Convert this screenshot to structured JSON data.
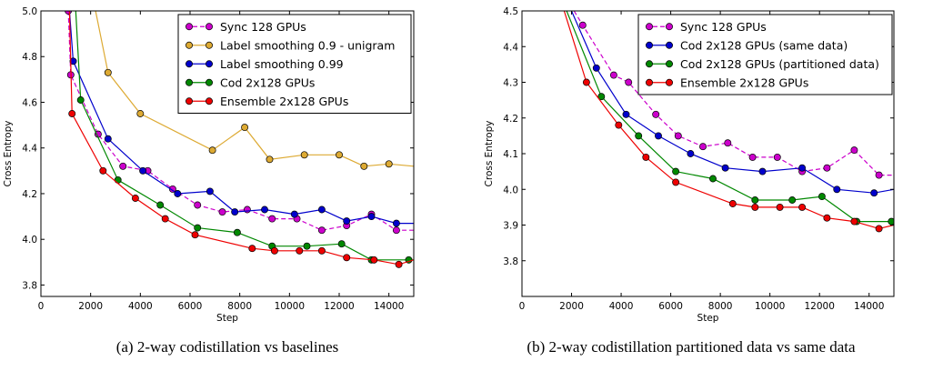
{
  "chart_data": [
    {
      "type": "line",
      "caption": "(a) 2-way codistillation vs baselines",
      "xlabel": "Step",
      "ylabel": "Cross Entropy",
      "xlim": [
        0,
        15000
      ],
      "ylim": [
        3.75,
        5.0
      ],
      "xticks": [
        0,
        2000,
        4000,
        6000,
        8000,
        10000,
        12000,
        14000
      ],
      "xtick_labels": [
        "0",
        "2000",
        "4000",
        "6000",
        "8000",
        "10000",
        "12000",
        "14000"
      ],
      "yticks": [
        3.8,
        4.0,
        4.2,
        4.4,
        4.6,
        4.8,
        5.0
      ],
      "ytick_labels": [
        "3.8",
        "4.0",
        "4.2",
        "4.4",
        "4.6",
        "4.8",
        "5.0"
      ],
      "grid": false,
      "legend": "top-right",
      "series": [
        {
          "name": "Sync 128 GPUs",
          "color": "#cc00cc",
          "dashed": true,
          "x": [
            1100,
            1200,
            2300,
            3300,
            4300,
            5300,
            6300,
            7300,
            8300,
            9300,
            10300,
            11300,
            12300,
            13300,
            14300,
            15000
          ],
          "y": [
            5.0,
            4.72,
            4.46,
            4.32,
            4.3,
            4.22,
            4.15,
            4.12,
            4.13,
            4.09,
            4.09,
            4.04,
            4.06,
            4.11,
            4.04,
            4.04
          ]
        },
        {
          "name": "Label smoothing 0.9 - unigram",
          "color": "#ddaa33",
          "dashed": false,
          "x": [
            2200,
            2700,
            4000,
            6900,
            8200,
            9200,
            10600,
            12000,
            13000,
            14000,
            15000
          ],
          "y": [
            5.0,
            4.73,
            4.55,
            4.39,
            4.49,
            4.35,
            4.37,
            4.37,
            4.32,
            4.33,
            4.32
          ],
          "markers_from": 1
        },
        {
          "name": "Label smoothing 0.99",
          "color": "#0000cc",
          "dashed": false,
          "x": [
            1150,
            1300,
            2700,
            4100,
            5500,
            6800,
            7800,
            9000,
            10200,
            11300,
            12300,
            13300,
            14300,
            15000
          ],
          "y": [
            5.0,
            4.78,
            4.44,
            4.3,
            4.2,
            4.21,
            4.12,
            4.13,
            4.11,
            4.13,
            4.08,
            4.1,
            4.07,
            4.07
          ],
          "markers_from": 1
        },
        {
          "name": "Cod 2x128 GPUs",
          "color": "#008800",
          "dashed": false,
          "x": [
            1400,
            1600,
            3100,
            4800,
            6300,
            7900,
            9300,
            10700,
            12100,
            13300,
            14800,
            15000
          ],
          "y": [
            5.0,
            4.61,
            4.26,
            4.15,
            4.05,
            4.03,
            3.97,
            3.97,
            3.98,
            3.91,
            3.91,
            3.91
          ],
          "markers_from": 1
        },
        {
          "name": "Ensemble 2x128 GPUs",
          "color": "#ee0000",
          "dashed": false,
          "x": [
            1150,
            1250,
            2500,
            3800,
            5000,
            6200,
            8500,
            9400,
            10400,
            11300,
            12300,
            13400,
            14400,
            15000
          ],
          "y": [
            5.0,
            4.55,
            4.3,
            4.18,
            4.09,
            4.02,
            3.96,
            3.95,
            3.95,
            3.95,
            3.92,
            3.91,
            3.89,
            3.91
          ],
          "markers_from": 1
        }
      ]
    },
    {
      "type": "line",
      "caption": "(b) 2-way codistillation partitioned data vs same data",
      "xlabel": "Step",
      "ylabel": "Cross Entropy",
      "xlim": [
        0,
        15000
      ],
      "ylim": [
        3.7,
        4.5
      ],
      "xticks": [
        0,
        2000,
        4000,
        6000,
        8000,
        10000,
        12000,
        14000
      ],
      "xtick_labels": [
        "0",
        "2000",
        "4000",
        "6000",
        "8000",
        "10000",
        "12000",
        "14000"
      ],
      "yticks": [
        3.7,
        3.8,
        3.9,
        4.0,
        4.1,
        4.2,
        4.3,
        4.4,
        4.5
      ],
      "ytick_labels": [
        "",
        "3.8",
        "3.9",
        "4.0",
        "4.1",
        "4.2",
        "4.3",
        "4.4",
        "4.5"
      ],
      "grid": false,
      "legend": "top-right",
      "series": [
        {
          "name": "Sync 128 GPUs",
          "color": "#cc00cc",
          "dashed": true,
          "x": [
            2100,
            2450,
            3700,
            4300,
            5400,
            6300,
            7300,
            8300,
            9300,
            10300,
            11300,
            12300,
            13400,
            14400,
            15000
          ],
          "y": [
            4.5,
            4.46,
            4.32,
            4.3,
            4.21,
            4.15,
            4.12,
            4.13,
            4.09,
            4.09,
            4.05,
            4.06,
            4.11,
            4.04,
            4.04
          ],
          "markers_from": 1
        },
        {
          "name": "Cod 2x128 GPUs (same data)",
          "color": "#0000cc",
          "dashed": false,
          "x": [
            2000,
            3000,
            4200,
            5500,
            6800,
            8200,
            9700,
            11300,
            12700,
            14200,
            15000
          ],
          "y": [
            4.5,
            4.34,
            4.21,
            4.15,
            4.1,
            4.06,
            4.05,
            4.06,
            4.0,
            3.99,
            4.0
          ],
          "markers_from": 1
        },
        {
          "name": "Cod 2x128 GPUs (partitioned data)",
          "color": "#008800",
          "dashed": false,
          "x": [
            1800,
            3200,
            4700,
            6200,
            7700,
            9400,
            10900,
            12100,
            13500,
            14900,
            15000
          ],
          "y": [
            4.5,
            4.26,
            4.15,
            4.05,
            4.03,
            3.97,
            3.97,
            3.98,
            3.91,
            3.91,
            3.91
          ],
          "markers_from": 1
        },
        {
          "name": "Ensemble 2x128 GPUs",
          "color": "#ee0000",
          "dashed": false,
          "x": [
            1700,
            2600,
            3900,
            5000,
            6200,
            8500,
            9400,
            10400,
            11300,
            12300,
            13400,
            14400,
            15000
          ],
          "y": [
            4.5,
            4.3,
            4.18,
            4.09,
            4.02,
            3.96,
            3.95,
            3.95,
            3.95,
            3.92,
            3.91,
            3.89,
            3.9
          ],
          "markers_from": 1
        }
      ]
    }
  ]
}
